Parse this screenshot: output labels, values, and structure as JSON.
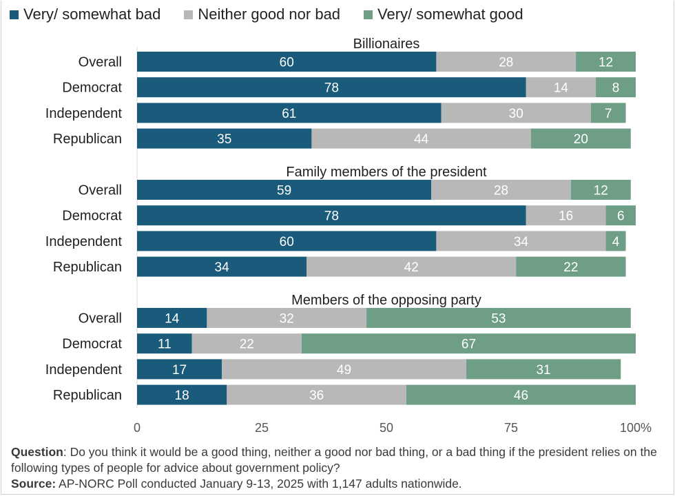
{
  "legend": [
    {
      "name": "Very/ somewhat bad",
      "color": "#1a5a7a"
    },
    {
      "name": "Neither good nor bad",
      "color": "#b8b8b8"
    },
    {
      "name": "Very/ somewhat good",
      "color": "#6e9e85"
    }
  ],
  "footer": {
    "question_label": "Question",
    "question_text": ": Do you think it would be a good thing, neither a good nor bad thing, or a bad thing if the president relies on the following types of people for advice about government policy?",
    "source_label": "Source:",
    "source_text": " AP-NORC Poll conducted January 9-13, 2025 with 1,147 adults nationwide."
  },
  "chart_data": {
    "type": "bar",
    "orientation": "horizontal",
    "stacked": true,
    "series_names": [
      "Very/ somewhat bad",
      "Neither good nor bad",
      "Very/ somewhat good"
    ],
    "colors": [
      "#1a5a7a",
      "#b8b8b8",
      "#6e9e85"
    ],
    "x_ticks": [
      "0",
      "25",
      "50",
      "75",
      "100"
    ],
    "x_unit": "%",
    "xlim": [
      0,
      100
    ],
    "groups": [
      {
        "title": "Billionaires",
        "rows": [
          {
            "label": "Overall",
            "values": [
              60,
              28,
              12
            ]
          },
          {
            "label": "Democrat",
            "values": [
              78,
              14,
              8
            ]
          },
          {
            "label": "Independent",
            "values": [
              61,
              30,
              7
            ]
          },
          {
            "label": "Republican",
            "values": [
              35,
              44,
              20
            ]
          }
        ]
      },
      {
        "title": "Family members of the president",
        "rows": [
          {
            "label": "Overall",
            "values": [
              59,
              28,
              12
            ]
          },
          {
            "label": "Democrat",
            "values": [
              78,
              16,
              6
            ]
          },
          {
            "label": "Independent",
            "values": [
              60,
              34,
              4
            ]
          },
          {
            "label": "Republican",
            "values": [
              34,
              42,
              22
            ]
          }
        ]
      },
      {
        "title": "Members of the opposing party",
        "rows": [
          {
            "label": "Overall",
            "values": [
              14,
              32,
              53
            ]
          },
          {
            "label": "Democrat",
            "values": [
              11,
              22,
              67
            ]
          },
          {
            "label": "Independent",
            "values": [
              17,
              49,
              31
            ]
          },
          {
            "label": "Republican",
            "values": [
              18,
              36,
              46
            ]
          }
        ]
      }
    ]
  }
}
